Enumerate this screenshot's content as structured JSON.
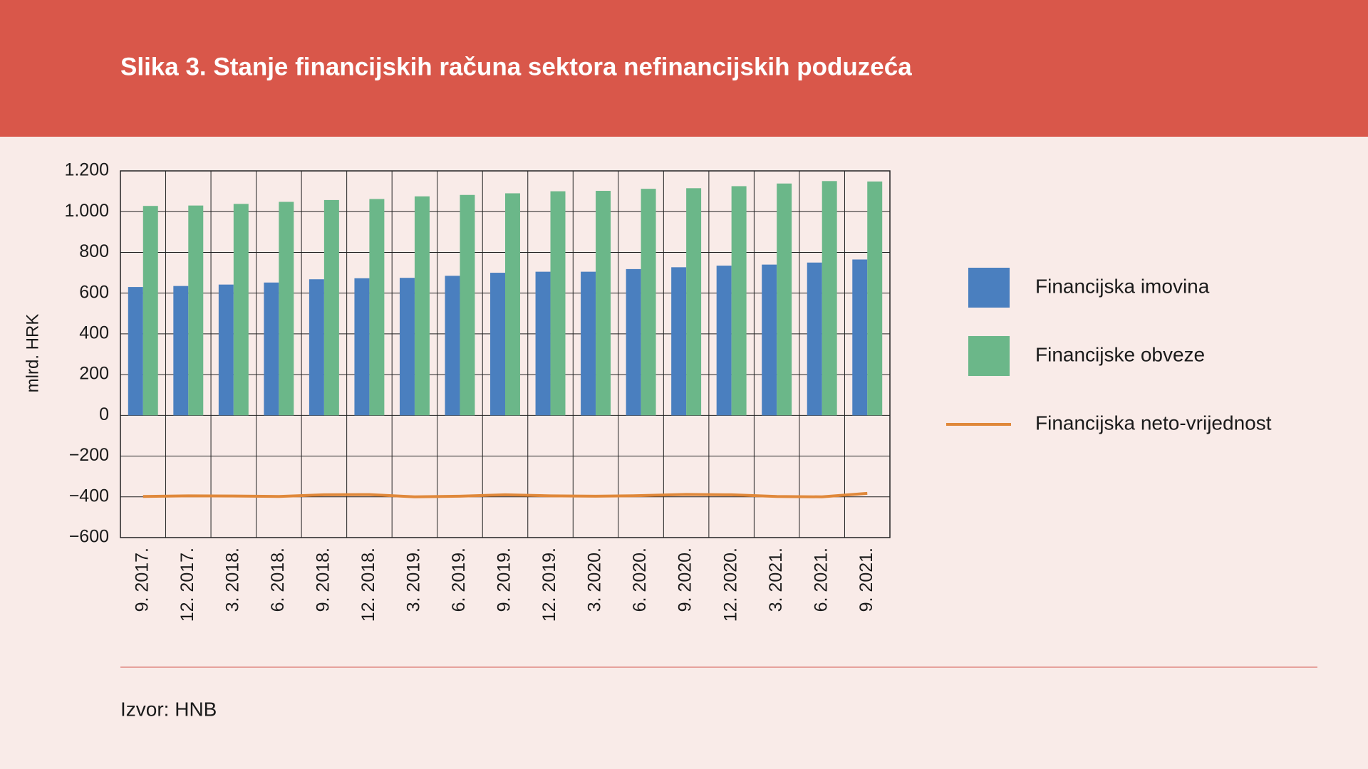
{
  "chart_data": {
    "type": "bar",
    "title": "Slika 3. Stanje financijskih računa sektora nefinancijskih poduzeća",
    "y_label": "mlrd. HRK",
    "source": "Izvor: HNB",
    "categories": [
      "9. 2017.",
      "12. 2017.",
      "3. 2018.",
      "6. 2018.",
      "9. 2018.",
      "12. 2018.",
      "3. 2019.",
      "6. 2019.",
      "9. 2019.",
      "12. 2019.",
      "3. 2020.",
      "6. 2020.",
      "9. 2020.",
      "12. 2020.",
      "3. 2021.",
      "6. 2021.",
      "9. 2021."
    ],
    "series": [
      {
        "name": "Financijska imovina",
        "type": "bar",
        "color": "#4a7fbf",
        "values": [
          630,
          635,
          642,
          652,
          668,
          673,
          675,
          685,
          700,
          705,
          705,
          718,
          727,
          735,
          740,
          750,
          765
        ]
      },
      {
        "name": "Financijske obveze",
        "type": "bar",
        "color": "#6bb789",
        "values": [
          1028,
          1030,
          1038,
          1048,
          1057,
          1062,
          1075,
          1082,
          1090,
          1100,
          1102,
          1112,
          1115,
          1125,
          1138,
          1150,
          1148
        ]
      },
      {
        "name": "Financijska neto-vrijednost",
        "type": "line",
        "color": "#e0883a",
        "values": [
          -398,
          -395,
          -396,
          -398,
          -390,
          -389,
          -400,
          -397,
          -390,
          -395,
          -397,
          -394,
          -388,
          -390,
          -398,
          -400,
          -383
        ]
      }
    ],
    "ylim": [
      -600,
      1200
    ],
    "yticks": [
      {
        "value": -600,
        "label": "−600"
      },
      {
        "value": -400,
        "label": "−400"
      },
      {
        "value": -200,
        "label": "−200"
      },
      0,
      200,
      400,
      600,
      800,
      {
        "value": 1000,
        "label": "1.000"
      },
      {
        "value": 1200,
        "label": "1.200"
      }
    ],
    "grid": true,
    "legend": "right"
  }
}
